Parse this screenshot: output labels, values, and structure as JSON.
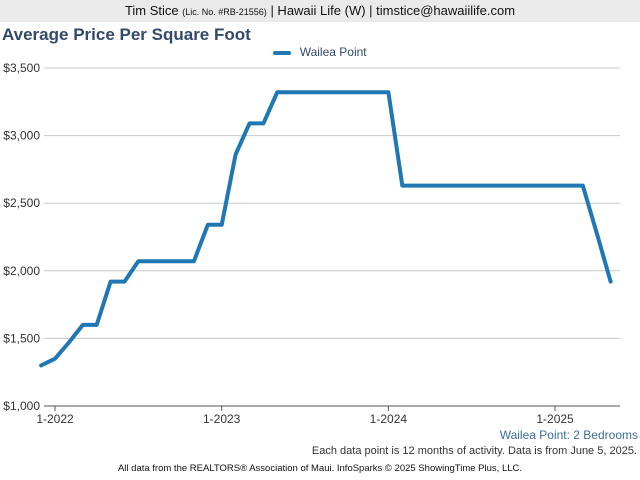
{
  "header": {
    "agent_name": "Tim Stice",
    "license": "(Lic. No. #RB-21556)",
    "rest": "| Hawaii Life (W) | timstice@hawaiilife.com"
  },
  "chart_data": {
    "type": "line",
    "title": "Average Price Per Square Foot",
    "subtitle": "Wailea Point: 2 Bedrooms",
    "note": "Each data point is 12 months of activity. Data is from June 5, 2025.",
    "footer": "All data from the REALTORS® Association of Maui. InfoSparks © 2025 ShowingTime Plus, LLC.",
    "xlabel": "",
    "ylabel": "",
    "ylim": [
      1000,
      3500
    ],
    "yticks": [
      1000,
      1500,
      2000,
      2500,
      3000,
      3500
    ],
    "ytick_labels": [
      "$1,000",
      "$1,500",
      "$2,000",
      "$2,500",
      "$3,000",
      "$3,500"
    ],
    "xticks": [
      "1-2022",
      "1-2023",
      "1-2024",
      "1-2025"
    ],
    "x_start": "2022-01",
    "legend_position": "top-center",
    "grid": true,
    "colors": {
      "series": "#1f77b4",
      "title": "#33496b",
      "subtitle": "#3d6d9c",
      "grid": "#c8c8c8"
    },
    "series": [
      {
        "name": "Wailea Point",
        "x": [
          "2021-12",
          "2022-01",
          "2022-02",
          "2022-03",
          "2022-04",
          "2022-05",
          "2022-06",
          "2022-07",
          "2022-08",
          "2022-09",
          "2022-10",
          "2022-11",
          "2022-12",
          "2023-01",
          "2023-02",
          "2023-03",
          "2023-04",
          "2023-05",
          "2023-06",
          "2023-07",
          "2023-08",
          "2023-09",
          "2023-10",
          "2023-11",
          "2023-12",
          "2024-01",
          "2024-02",
          "2024-03",
          "2024-04",
          "2024-05",
          "2024-06",
          "2024-07",
          "2024-08",
          "2024-09",
          "2024-10",
          "2024-11",
          "2024-12",
          "2025-01",
          "2025-02",
          "2025-03",
          "2025-04",
          "2025-05"
        ],
        "values": [
          1300,
          1350,
          1470,
          1600,
          1600,
          1920,
          1920,
          2070,
          2070,
          2070,
          2070,
          2070,
          2340,
          2340,
          2860,
          3090,
          3090,
          3320,
          3320,
          3320,
          3320,
          3320,
          3320,
          3320,
          3320,
          3320,
          2630,
          2630,
          2630,
          2630,
          2630,
          2630,
          2630,
          2630,
          2630,
          2630,
          2630,
          2630,
          2630,
          2630,
          2280,
          1920
        ]
      }
    ]
  }
}
